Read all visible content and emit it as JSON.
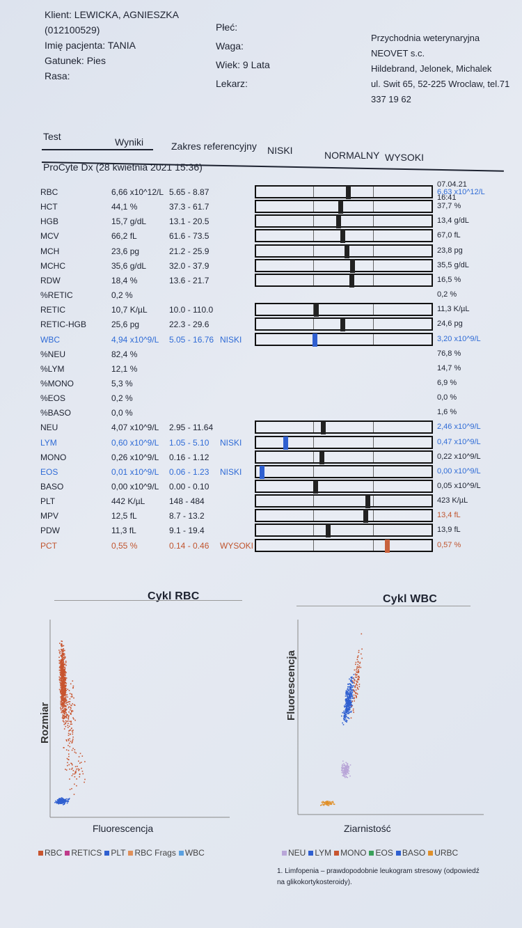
{
  "client": {
    "klient": "Klient: LEWICKA, AGNIESZKA",
    "id": "(012100529)",
    "imie": "Imię pacjenta: TANIA",
    "gatunek": "Gatunek: Pies",
    "rasa": "Rasa:"
  },
  "patient": {
    "plec": "Płeć:",
    "waga": "Waga:",
    "wiek": "Wiek: 9 Lata",
    "lekarz": "Lekarz:"
  },
  "clinic": {
    "line1": "Przychodnia weterynaryjna",
    "line2": "NEOVET s.c.",
    "line3": "Hildebrand, Jelonek, Michalek",
    "line4": "ul. Swit 65, 52-225 Wroclaw, tel.71",
    "line5": "337 19 62"
  },
  "table_header": {
    "test": "Test",
    "wyniki": "Wyniki",
    "zakres": "Zakres referencyjny",
    "niski": "NISKI",
    "normalny": "NORMALNY",
    "wysoki": "WYSOKI"
  },
  "run": "ProCyte Dx (28 kwietnia 2021 15:36)",
  "prev_date": "07.04.21",
  "prev_time": "16:41",
  "rows": [
    {
      "name": "RBC",
      "result": "6,66 x10^12/L",
      "ref": "5.65 - 8.87",
      "flag": "",
      "prev": "6,63 x10^12/L",
      "marker": 0.55
    },
    {
      "name": "HCT",
      "result": "44,1 %",
      "ref": "37.3 - 61.7",
      "flag": "",
      "prev": "37,7 %",
      "marker": 0.42
    },
    {
      "name": "HGB",
      "result": "15,7 g/dL",
      "ref": "13.1 - 20.5",
      "flag": "",
      "prev": "13,4 g/dL",
      "marker": 0.38
    },
    {
      "name": "MCV",
      "result": "66,2 fL",
      "ref": "61.6 - 73.5",
      "flag": "",
      "prev": "67,0 fL",
      "marker": 0.45
    },
    {
      "name": "MCH",
      "result": "23,6 pg",
      "ref": "21.2 - 25.9",
      "flag": "",
      "prev": "23,8 pg",
      "marker": 0.52
    },
    {
      "name": "MCHC",
      "result": "35,6 g/dL",
      "ref": "32.0 - 37.9",
      "flag": "",
      "prev": "35,5 g/dL",
      "marker": 0.62
    },
    {
      "name": "RDW",
      "result": "18,4 %",
      "ref": "13.6 - 21.7",
      "flag": "",
      "prev": "16,5 %",
      "marker": 0.6
    },
    {
      "name": "%RETIC",
      "result": "0,2 %",
      "ref": "",
      "flag": "",
      "prev": "0,2 %",
      "marker": null
    },
    {
      "name": "RETIC",
      "result": "10,7 K/µL",
      "ref": "10.0 - 110.0",
      "flag": "",
      "prev": "11,3 K/µL",
      "marker": 0.01
    },
    {
      "name": "RETIC-HGB",
      "result": "25,6 pg",
      "ref": "22.3 - 29.6",
      "flag": "",
      "prev": "24,6 pg",
      "marker": 0.45
    },
    {
      "name": "WBC",
      "result": "4,94 x10^9/L",
      "ref": "5.05 - 16.76",
      "flag": "NISKI",
      "prev": "3,20 x10^9/L",
      "marker": -0.01
    },
    {
      "name": "%NEU",
      "result": "82,4 %",
      "ref": "",
      "flag": "",
      "prev": "76,8 %",
      "marker": null
    },
    {
      "name": "%LYM",
      "result": "12,1 %",
      "ref": "",
      "flag": "",
      "prev": "14,7 %",
      "marker": null
    },
    {
      "name": "%MONO",
      "result": "5,3 %",
      "ref": "",
      "flag": "",
      "prev": "6,9 %",
      "marker": null
    },
    {
      "name": "%EOS",
      "result": "0,2 %",
      "ref": "",
      "flag": "",
      "prev": "0,0 %",
      "marker": null
    },
    {
      "name": "%BASO",
      "result": "0,0 %",
      "ref": "",
      "flag": "",
      "prev": "1,6 %",
      "marker": null
    },
    {
      "name": "NEU",
      "result": "4,07 x10^9/L",
      "ref": "2.95 - 11.64",
      "flag": "",
      "prev": "2,46 x10^9/L",
      "marker": 0.13
    },
    {
      "name": "LYM",
      "result": "0,60 x10^9/L",
      "ref": "1.05 - 5.10",
      "flag": "NISKI",
      "prev": "0,47 x10^9/L",
      "marker": -0.5
    },
    {
      "name": "MONO",
      "result": "0,26 x10^9/L",
      "ref": "0.16 - 1.12",
      "flag": "",
      "prev": "0,22 x10^9/L",
      "marker": 0.1
    },
    {
      "name": "EOS",
      "result": "0,01 x10^9/L",
      "ref": "0.06 - 1.23",
      "flag": "NISKI",
      "prev": "0,00 x10^9/L",
      "marker": -0.9
    },
    {
      "name": "BASO",
      "result": "0,00 x10^9/L",
      "ref": "0.00 - 0.10",
      "flag": "",
      "prev": "0,05 x10^9/L",
      "marker": 0.0
    },
    {
      "name": "PLT",
      "result": "442 K/µL",
      "ref": "148 - 484",
      "flag": "",
      "prev": "423 K/µL",
      "marker": 0.87
    },
    {
      "name": "MPV",
      "result": "12,5 fL",
      "ref": "8.7 - 13.2",
      "flag": "",
      "prev": "13,4 fL",
      "marker": 0.84
    },
    {
      "name": "PDW",
      "result": "11,3 fL",
      "ref": "9.1 - 19.4",
      "flag": "",
      "prev": "13,9 fL",
      "marker": 0.21
    },
    {
      "name": "PCT",
      "result": "0,55 %",
      "ref": "0.14 - 0.46",
      "flag": "WYSOKI",
      "prev": "0,57 %",
      "marker": 1.2
    }
  ],
  "row_colors": {
    "WBC": "blue",
    "LYM": "blue",
    "EOS": "blue",
    "PCT": "red"
  },
  "bar_groups": [
    [
      0,
      6
    ],
    [
      8,
      10
    ],
    [
      16,
      24
    ]
  ],
  "rbc_plot": {
    "title": "Cykl RBC",
    "ylabel": "Rozmiar",
    "xlabel": "Fluorescencja",
    "legend": [
      "RBC",
      "RETICS",
      "PLT",
      "RBC Frags",
      "WBC"
    ],
    "legend_colors": [
      "#c8552f",
      "#c03a8a",
      "#2f5fd0",
      "#e0905a",
      "#5aa0e0"
    ]
  },
  "wbc_plot": {
    "title": "Cykl WBC",
    "ylabel": "Fluorescencja",
    "xlabel": "Ziarnistość",
    "legend": [
      "NEU",
      "LYM",
      "MONO",
      "EOS",
      "BASO",
      "URBC"
    ],
    "legend_colors": [
      "#b9a6d8",
      "#2f5fd0",
      "#c8552f",
      "#3aa15a",
      "#2f5fd0",
      "#e0902a"
    ]
  },
  "note": "1. Limfopenia – prawdopodobnie leukogram stresowy (odpowiedź na glikokortykosteroidy)."
}
